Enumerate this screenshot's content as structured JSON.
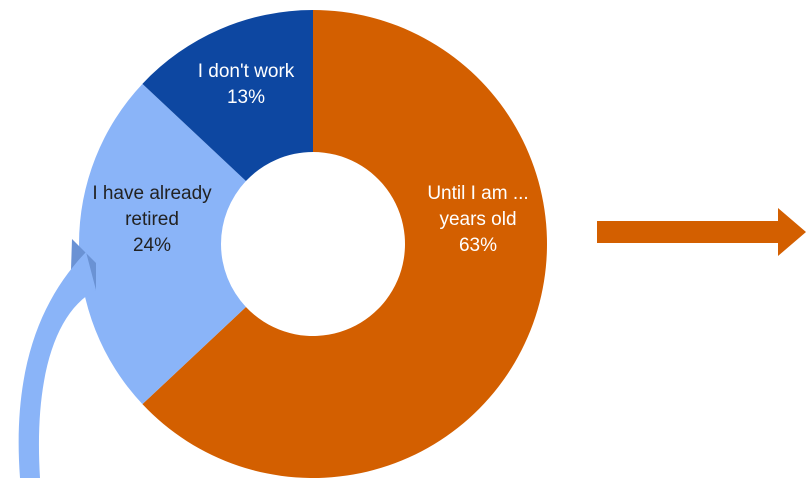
{
  "chart_data": {
    "type": "pie",
    "variant": "donut",
    "start": "12 o'clock, clockwise",
    "slices": [
      {
        "label_lines": [
          "Until I am ...",
          "years old"
        ],
        "value": 63,
        "value_label": "63%",
        "color": "#D35F00",
        "text_color": "#ffffff"
      },
      {
        "label_lines": [
          "I have already",
          "retired"
        ],
        "value": 24,
        "value_label": "24%",
        "color": "#8AB4F8",
        "text_color": "#222222"
      },
      {
        "label_lines": [
          "I don't work"
        ],
        "value": 13,
        "value_label": "13%",
        "color": "#0D47A1",
        "text_color": "#ffffff"
      }
    ],
    "title": "",
    "legend": "none"
  },
  "decorations": {
    "right_arrow_color": "#D35F00",
    "curved_arrow_color": "#8AB4F8",
    "curved_arrow_shade": "#6A92D4"
  }
}
